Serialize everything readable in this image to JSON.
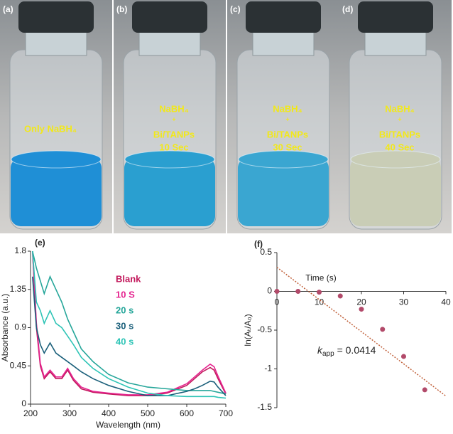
{
  "photos": [
    {
      "label": "(a)",
      "lines": [
        "Only NaBH₄"
      ]
    },
    {
      "label": "(b)",
      "lines": [
        "NaBH₄",
        "+",
        "Bi/TANPs",
        "10 Sec"
      ]
    },
    {
      "label": "(c)",
      "lines": [
        "NaBH₄",
        "+",
        "Bi/TANPs",
        "30 Sec"
      ]
    },
    {
      "label": "(d)",
      "lines": [
        "NaBH₄",
        "+",
        "Bi/TANPs",
        "40 Sec"
      ]
    }
  ],
  "chart_data": [
    {
      "type": "line",
      "panel": "(e)",
      "x_label": "Wavelength (nm)",
      "y_label": "Absorbance (a.u.)",
      "x": [
        205,
        215,
        225,
        235,
        250,
        265,
        280,
        295,
        310,
        330,
        360,
        400,
        450,
        500,
        550,
        600,
        620,
        640,
        660,
        670,
        680,
        700
      ],
      "xlim": [
        200,
        700
      ],
      "xticks": [
        200,
        300,
        400,
        500,
        600,
        700
      ],
      "ylim": [
        0,
        1.8
      ],
      "yticks": [
        0,
        0.45,
        0.9,
        1.35,
        1.8
      ],
      "series": [
        {
          "name": "Blank",
          "color": "#c2185b",
          "values": [
            1.8,
            0.9,
            0.45,
            0.3,
            0.38,
            0.3,
            0.3,
            0.4,
            0.28,
            0.18,
            0.14,
            0.12,
            0.1,
            0.1,
            0.13,
            0.22,
            0.3,
            0.38,
            0.43,
            0.4,
            0.3,
            0.12
          ]
        },
        {
          "name": "10 S",
          "color": "#e5238f",
          "values": [
            1.8,
            0.95,
            0.48,
            0.32,
            0.4,
            0.32,
            0.32,
            0.42,
            0.3,
            0.2,
            0.15,
            0.13,
            0.11,
            0.11,
            0.14,
            0.24,
            0.32,
            0.4,
            0.47,
            0.44,
            0.33,
            0.13
          ]
        },
        {
          "name": "20 s",
          "color": "#26a69a",
          "values": [
            1.8,
            1.6,
            1.45,
            1.3,
            1.5,
            1.35,
            1.2,
            1.0,
            0.85,
            0.65,
            0.5,
            0.35,
            0.25,
            0.2,
            0.18,
            0.16,
            0.16,
            0.16,
            0.16,
            0.15,
            0.14,
            0.12
          ]
        },
        {
          "name": "30 s",
          "color": "#1a5f7a",
          "values": [
            1.5,
            0.9,
            0.7,
            0.6,
            0.72,
            0.6,
            0.55,
            0.5,
            0.45,
            0.38,
            0.3,
            0.22,
            0.15,
            0.1,
            0.1,
            0.15,
            0.18,
            0.22,
            0.27,
            0.26,
            0.2,
            0.1
          ]
        },
        {
          "name": "40 s",
          "color": "#2ec4b6",
          "values": [
            1.8,
            1.2,
            1.1,
            0.95,
            1.1,
            0.95,
            0.9,
            0.8,
            0.7,
            0.55,
            0.42,
            0.3,
            0.2,
            0.13,
            0.1,
            0.09,
            0.09,
            0.09,
            0.09,
            0.09,
            0.08,
            0.07
          ]
        }
      ]
    },
    {
      "type": "scatter",
      "panel": "(f)",
      "x_label": "Time (s)",
      "y_label": "ln(Aₜ/A₀)",
      "x": [
        0,
        5,
        10,
        15,
        20,
        25,
        30,
        35
      ],
      "values": [
        0,
        0,
        -0.01,
        -0.06,
        -0.23,
        -0.49,
        -0.84,
        -1.27
      ],
      "color": "#b24a6a",
      "xlim": [
        0,
        40
      ],
      "xticks": [
        0,
        10,
        20,
        30,
        40
      ],
      "ylim": [
        -1.5,
        0.5
      ],
      "yticks": [
        0.5,
        0,
        -0.5,
        -1,
        -1.5
      ],
      "trendline": {
        "color": "#c0603a",
        "x": [
          0,
          40
        ],
        "y": [
          0.31,
          -1.35
        ]
      },
      "annotation": {
        "symbol": "k",
        "subscript": "app",
        "text": " = 0.0414"
      }
    }
  ]
}
